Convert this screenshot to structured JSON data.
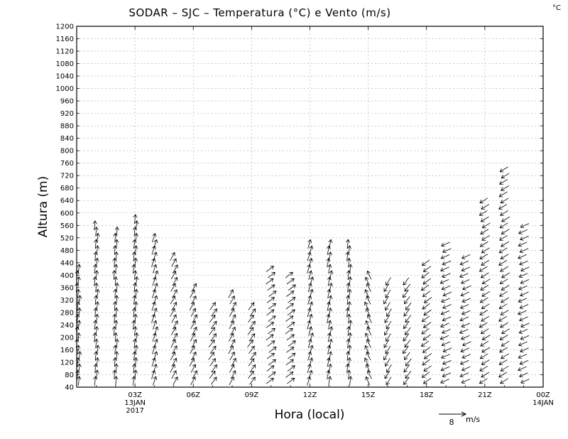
{
  "chart_data": {
    "type": "vector-field",
    "title": "SODAR – SJC – Temperatura (°C) e Vento (m/s)",
    "unit_corner": "°C",
    "xlabel": "Hora (local)",
    "ylabel": "Altura (m)",
    "ylim": [
      40,
      1200
    ],
    "y_ticks": [
      40,
      80,
      120,
      160,
      200,
      240,
      280,
      320,
      360,
      400,
      440,
      480,
      520,
      560,
      600,
      640,
      680,
      720,
      760,
      800,
      840,
      880,
      920,
      960,
      1000,
      1040,
      1080,
      1120,
      1160,
      1200
    ],
    "xlim_hours": [
      0,
      24
    ],
    "x_ticks": [
      {
        "hour": 3,
        "label": "03Z",
        "sub1": "13JAN",
        "sub2": "2017"
      },
      {
        "hour": 6,
        "label": "06Z",
        "sub1": "",
        "sub2": ""
      },
      {
        "hour": 9,
        "label": "09Z",
        "sub1": "",
        "sub2": ""
      },
      {
        "hour": 12,
        "label": "12Z",
        "sub1": "",
        "sub2": ""
      },
      {
        "hour": 15,
        "label": "15Z",
        "sub1": "",
        "sub2": ""
      },
      {
        "hour": 18,
        "label": "18Z",
        "sub1": "",
        "sub2": ""
      },
      {
        "hour": 21,
        "label": "21Z",
        "sub1": "",
        "sub2": ""
      },
      {
        "hour": 24,
        "label": "00Z",
        "sub1": "14JAN",
        "sub2": ""
      }
    ],
    "grid": true,
    "reference_vector": {
      "speed": 8,
      "label": "8",
      "unit": "m/s"
    },
    "wind_profiles": [
      {
        "hour": 0.0,
        "top": 420,
        "dir": [
          0.1,
          1.0
        ]
      },
      {
        "hour": 1.0,
        "top": 560,
        "dir": [
          0.1,
          1.0
        ]
      },
      {
        "hour": 2.0,
        "top": 540,
        "dir": [
          0.05,
          1.0
        ]
      },
      {
        "hour": 3.0,
        "top": 590,
        "dir": [
          0.1,
          1.0
        ]
      },
      {
        "hour": 4.0,
        "top": 530,
        "dir": [
          0.3,
          0.9
        ]
      },
      {
        "hour": 5.0,
        "top": 460,
        "dir": [
          0.5,
          0.9
        ]
      },
      {
        "hour": 6.0,
        "top": 370,
        "dir": [
          0.5,
          0.9
        ]
      },
      {
        "hour": 7.0,
        "top": 300,
        "dir": [
          0.6,
          0.8
        ]
      },
      {
        "hour": 8.0,
        "top": 350,
        "dir": [
          0.5,
          0.9
        ]
      },
      {
        "hour": 9.0,
        "top": 300,
        "dir": [
          0.6,
          0.8
        ]
      },
      {
        "hour": 10.0,
        "top": 420,
        "dir": [
          0.8,
          0.6
        ]
      },
      {
        "hour": 11.0,
        "top": 400,
        "dir": [
          0.8,
          0.6
        ]
      },
      {
        "hour": 12.0,
        "top": 510,
        "dir": [
          0.3,
          1.0
        ]
      },
      {
        "hour": 13.0,
        "top": 500,
        "dir": [
          0.2,
          1.0
        ]
      },
      {
        "hour": 14.0,
        "top": 500,
        "dir": [
          0.1,
          1.0
        ]
      },
      {
        "hour": 15.0,
        "top": 400,
        "dir": [
          -0.4,
          0.9
        ]
      },
      {
        "hour": 16.0,
        "top": 380,
        "dir": [
          -0.5,
          -0.8
        ]
      },
      {
        "hour": 17.0,
        "top": 380,
        "dir": [
          -0.6,
          -0.8
        ]
      },
      {
        "hour": 18.0,
        "top": 450,
        "dir": [
          -0.8,
          -0.6
        ]
      },
      {
        "hour": 19.0,
        "top": 500,
        "dir": [
          -0.9,
          -0.4
        ]
      },
      {
        "hour": 20.0,
        "top": 470,
        "dir": [
          -0.9,
          -0.4
        ]
      },
      {
        "hour": 21.0,
        "top": 640,
        "dir": [
          -0.8,
          -0.5
        ]
      },
      {
        "hour": 22.0,
        "top": 740,
        "dir": [
          -0.8,
          -0.5
        ]
      },
      {
        "hour": 23.0,
        "top": 560,
        "dir": [
          -0.9,
          -0.4
        ]
      }
    ]
  }
}
